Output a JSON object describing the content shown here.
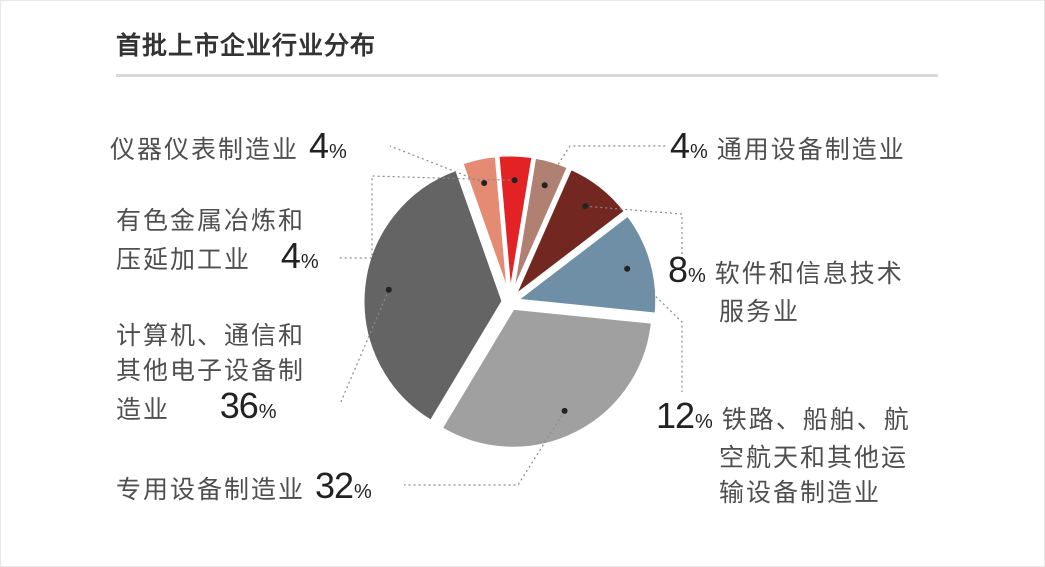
{
  "title": "首批上市企业行业分布",
  "chart_data": {
    "type": "pie",
    "slices": [
      {
        "name": "仪器仪表制造业",
        "value": 4,
        "display": "4",
        "color": "#e58a73"
      },
      {
        "name": "有色金属冶炼和压延加工业",
        "value": 4,
        "display": "4",
        "color": "#e22225"
      },
      {
        "name": "通用设备制造业",
        "value": 4,
        "display": "4",
        "color": "#b08173"
      },
      {
        "name": "软件和信息技术服务业",
        "value": 8,
        "display": "8",
        "color": "#722820"
      },
      {
        "name": "铁路、船舶、航空航天和其他运输设备制造业",
        "value": 12,
        "display": "12",
        "color": "#6e8fa6"
      },
      {
        "name": "专用设备制造业",
        "value": 32,
        "display": "32",
        "color": "#a0a0a0"
      },
      {
        "name": "计算机、通信和其他电子设备制造业",
        "value": 36,
        "display": "36",
        "color": "#646464"
      }
    ],
    "unit": "%"
  },
  "labels": {
    "yiqi": {
      "lines": [
        "仪器仪表制造业"
      ],
      "pct": "4"
    },
    "tongyong": {
      "lines": [
        "通用设备制造业"
      ],
      "pct": "4"
    },
    "youse": {
      "lines": [
        "有色金属冶炼和",
        "压延加工业"
      ],
      "pct": "4"
    },
    "ruanjian": {
      "lines": [
        "软件和信息技术",
        "服务业"
      ],
      "pct": "8"
    },
    "jisuanji": {
      "lines": [
        "计算机、通信和",
        "其他电子设备制",
        "造业"
      ],
      "pct": "36"
    },
    "tielu": {
      "lines": [
        "铁路、船舶、航",
        "空航天和其他运",
        "输设备制造业"
      ],
      "pct": "12"
    },
    "zhuanyong": {
      "lines": [
        "专用设备制造业"
      ],
      "pct": "32"
    }
  },
  "percent_sign": "%"
}
